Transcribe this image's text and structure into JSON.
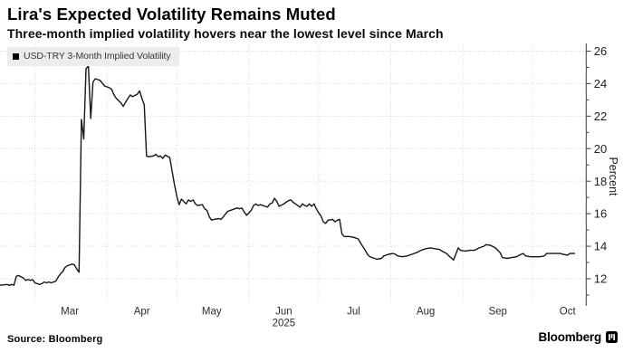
{
  "header": {
    "title": "Lira's Expected Volatility Remains Muted",
    "subtitle": "Three-month implied volatility hovers near the lowest level since March"
  },
  "legend": {
    "swatch_color": "#000000",
    "label": "USD-TRY 3-Month Implied Volatility"
  },
  "footer": {
    "source": "Source: Bloomberg",
    "brand": "Bloomberg"
  },
  "chart_data": {
    "type": "line",
    "title": "Lira's Expected Volatility Remains Muted",
    "subtitle": "Three-month implied volatility hovers near the lowest level since March",
    "ylabel": "Percent",
    "xlabel": "",
    "grid": "dotted",
    "legend_position": "top-left",
    "ylim": [
      10.33,
      26.47
    ],
    "y_ticks_major": [
      12,
      14,
      16,
      18,
      20,
      22,
      24,
      26
    ],
    "y_ticks_minor": [
      11,
      13,
      15,
      17,
      19,
      21,
      23,
      25
    ],
    "x_domain": [
      "2025-02-14",
      "2025-10-24"
    ],
    "x_gridline_dates": [
      "2025-03-01",
      "2025-04-01",
      "2025-05-01",
      "2025-06-01",
      "2025-07-01",
      "2025-08-01",
      "2025-09-01",
      "2025-10-01"
    ],
    "x_tick_labels": [
      {
        "label": "Mar",
        "date": "2025-03-16"
      },
      {
        "label": "Apr",
        "date": "2025-04-16"
      },
      {
        "label": "May",
        "date": "2025-05-16"
      },
      {
        "label": "Jun",
        "date": "2025-06-16"
      },
      {
        "label": "Jul",
        "date": "2025-07-16"
      },
      {
        "label": "Aug",
        "date": "2025-08-16"
      },
      {
        "label": "Sep",
        "date": "2025-09-16"
      },
      {
        "label": "Oct",
        "date": "2025-10-16"
      }
    ],
    "year_label": {
      "label": "2025",
      "date": "2025-06-16"
    },
    "style": {
      "line_color": "#161616",
      "grid_color": "#d4d4d4",
      "axis_color": "#3c3c3c",
      "tick_label_color": "#1d1d1d",
      "month_label_color": "#2e2e2e",
      "legend_bg": "#ececec"
    },
    "series": [
      {
        "name": "USD-TRY 3-Month Implied Volatility",
        "color": "#161616",
        "points": [
          [
            "2025-02-14",
            11.6
          ],
          [
            "2025-02-17",
            11.65
          ],
          [
            "2025-02-18",
            11.6
          ],
          [
            "2025-02-19",
            11.65
          ],
          [
            "2025-02-20",
            11.6
          ],
          [
            "2025-02-21",
            12.15
          ],
          [
            "2025-02-22",
            12.2
          ],
          [
            "2025-02-24",
            12.05
          ],
          [
            "2025-02-25",
            11.9
          ],
          [
            "2025-02-26",
            11.95
          ],
          [
            "2025-02-27",
            11.9
          ],
          [
            "2025-02-28",
            11.95
          ],
          [
            "2025-03-01",
            11.75
          ],
          [
            "2025-03-03",
            11.65
          ],
          [
            "2025-03-04",
            11.7
          ],
          [
            "2025-03-05",
            11.8
          ],
          [
            "2025-03-06",
            11.75
          ],
          [
            "2025-03-07",
            11.8
          ],
          [
            "2025-03-08",
            11.75
          ],
          [
            "2025-03-10",
            11.85
          ],
          [
            "2025-03-11",
            12.1
          ],
          [
            "2025-03-12",
            12.3
          ],
          [
            "2025-03-13",
            12.45
          ],
          [
            "2025-03-14",
            12.7
          ],
          [
            "2025-03-15",
            12.8
          ],
          [
            "2025-03-17",
            12.9
          ],
          [
            "2025-03-18",
            12.85
          ],
          [
            "2025-03-19",
            12.6
          ],
          [
            "2025-03-20",
            12.4
          ],
          [
            "2025-03-21",
            21.8
          ],
          [
            "2025-03-22",
            20.6
          ],
          [
            "2025-03-23",
            24.9
          ],
          [
            "2025-03-24",
            25.1
          ],
          [
            "2025-03-25",
            21.85
          ],
          [
            "2025-03-26",
            24.1
          ],
          [
            "2025-03-27",
            24.3
          ],
          [
            "2025-03-28",
            24.25
          ],
          [
            "2025-03-29",
            24.2
          ],
          [
            "2025-03-31",
            23.85
          ],
          [
            "2025-04-01",
            23.8
          ],
          [
            "2025-04-02",
            23.75
          ],
          [
            "2025-04-03",
            23.65
          ],
          [
            "2025-04-04",
            23.3
          ],
          [
            "2025-04-05",
            23.1
          ],
          [
            "2025-04-07",
            22.8
          ],
          [
            "2025-04-08",
            22.6
          ],
          [
            "2025-04-09",
            22.85
          ],
          [
            "2025-04-10",
            23.1
          ],
          [
            "2025-04-11",
            23.3
          ],
          [
            "2025-04-12",
            23.2
          ],
          [
            "2025-04-14",
            23.35
          ],
          [
            "2025-04-15",
            23.55
          ],
          [
            "2025-04-16",
            23.1
          ],
          [
            "2025-04-17",
            22.7
          ],
          [
            "2025-04-18",
            19.55
          ],
          [
            "2025-04-19",
            19.5
          ],
          [
            "2025-04-21",
            19.55
          ],
          [
            "2025-04-22",
            19.65
          ],
          [
            "2025-04-23",
            19.5
          ],
          [
            "2025-04-24",
            19.55
          ],
          [
            "2025-04-25",
            19.4
          ],
          [
            "2025-04-26",
            19.6
          ],
          [
            "2025-04-28",
            19.45
          ],
          [
            "2025-04-29",
            18.6
          ],
          [
            "2025-04-30",
            17.8
          ],
          [
            "2025-05-01",
            17.1
          ],
          [
            "2025-05-02",
            16.55
          ],
          [
            "2025-05-03",
            16.9
          ],
          [
            "2025-05-05",
            16.6
          ],
          [
            "2025-05-06",
            16.85
          ],
          [
            "2025-05-07",
            16.75
          ],
          [
            "2025-05-08",
            16.85
          ],
          [
            "2025-05-09",
            16.6
          ],
          [
            "2025-05-10",
            16.5
          ],
          [
            "2025-05-12",
            16.55
          ],
          [
            "2025-05-13",
            16.3
          ],
          [
            "2025-05-14",
            16.2
          ],
          [
            "2025-05-15",
            15.8
          ],
          [
            "2025-05-16",
            15.6
          ],
          [
            "2025-05-17",
            15.65
          ],
          [
            "2025-05-19",
            15.7
          ],
          [
            "2025-05-20",
            15.65
          ],
          [
            "2025-05-21",
            15.8
          ],
          [
            "2025-05-22",
            16.0
          ],
          [
            "2025-05-23",
            16.15
          ],
          [
            "2025-05-26",
            16.3
          ],
          [
            "2025-05-27",
            16.35
          ],
          [
            "2025-05-28",
            16.3
          ],
          [
            "2025-05-29",
            16.35
          ],
          [
            "2025-05-30",
            16.1
          ],
          [
            "2025-05-31",
            15.9
          ],
          [
            "2025-06-02",
            16.2
          ],
          [
            "2025-06-03",
            16.5
          ],
          [
            "2025-06-04",
            16.6
          ],
          [
            "2025-06-05",
            16.5
          ],
          [
            "2025-06-06",
            16.55
          ],
          [
            "2025-06-09",
            16.4
          ],
          [
            "2025-06-10",
            16.6
          ],
          [
            "2025-06-11",
            16.65
          ],
          [
            "2025-06-12",
            16.95
          ],
          [
            "2025-06-13",
            16.75
          ],
          [
            "2025-06-14",
            16.45
          ],
          [
            "2025-06-16",
            16.6
          ],
          [
            "2025-06-17",
            16.7
          ],
          [
            "2025-06-18",
            16.8
          ],
          [
            "2025-06-19",
            16.85
          ],
          [
            "2025-06-20",
            16.7
          ],
          [
            "2025-06-21",
            16.6
          ],
          [
            "2025-06-23",
            16.4
          ],
          [
            "2025-06-24",
            16.6
          ],
          [
            "2025-06-25",
            16.5
          ],
          [
            "2025-06-26",
            16.45
          ],
          [
            "2025-06-27",
            16.6
          ],
          [
            "2025-06-28",
            16.45
          ],
          [
            "2025-06-29",
            16.6
          ],
          [
            "2025-06-30",
            16.3
          ],
          [
            "2025-07-01",
            16.05
          ],
          [
            "2025-07-02",
            15.85
          ],
          [
            "2025-07-03",
            15.5
          ],
          [
            "2025-07-04",
            15.4
          ],
          [
            "2025-07-05",
            15.6
          ],
          [
            "2025-07-07",
            15.65
          ],
          [
            "2025-07-08",
            15.5
          ],
          [
            "2025-07-09",
            15.6
          ],
          [
            "2025-07-10",
            15.65
          ],
          [
            "2025-07-11",
            14.75
          ],
          [
            "2025-07-12",
            14.6
          ],
          [
            "2025-07-14",
            14.6
          ],
          [
            "2025-07-16",
            14.55
          ],
          [
            "2025-07-18",
            14.45
          ],
          [
            "2025-07-19",
            14.2
          ],
          [
            "2025-07-21",
            13.75
          ],
          [
            "2025-07-22",
            13.5
          ],
          [
            "2025-07-23",
            13.35
          ],
          [
            "2025-07-25",
            13.25
          ],
          [
            "2025-07-26",
            13.2
          ],
          [
            "2025-07-28",
            13.25
          ],
          [
            "2025-07-29",
            13.4
          ],
          [
            "2025-07-31",
            13.5
          ],
          [
            "2025-08-02",
            13.55
          ],
          [
            "2025-08-03",
            13.5
          ],
          [
            "2025-08-04",
            13.4
          ],
          [
            "2025-08-06",
            13.35
          ],
          [
            "2025-08-08",
            13.4
          ],
          [
            "2025-08-10",
            13.5
          ],
          [
            "2025-08-12",
            13.6
          ],
          [
            "2025-08-14",
            13.75
          ],
          [
            "2025-08-16",
            13.85
          ],
          [
            "2025-08-18",
            13.9
          ],
          [
            "2025-08-20",
            13.85
          ],
          [
            "2025-08-22",
            13.8
          ],
          [
            "2025-08-23",
            13.7
          ],
          [
            "2025-08-25",
            13.55
          ],
          [
            "2025-08-26",
            13.4
          ],
          [
            "2025-08-28",
            13.15
          ],
          [
            "2025-08-30",
            13.9
          ],
          [
            "2025-08-31",
            13.75
          ],
          [
            "2025-09-02",
            13.7
          ],
          [
            "2025-09-04",
            13.75
          ],
          [
            "2025-09-06",
            13.75
          ],
          [
            "2025-09-08",
            13.9
          ],
          [
            "2025-09-10",
            14.0
          ],
          [
            "2025-09-11",
            14.1
          ],
          [
            "2025-09-13",
            14.05
          ],
          [
            "2025-09-15",
            13.9
          ],
          [
            "2025-09-17",
            13.6
          ],
          [
            "2025-09-18",
            13.3
          ],
          [
            "2025-09-20",
            13.25
          ],
          [
            "2025-09-22",
            13.3
          ],
          [
            "2025-09-24",
            13.35
          ],
          [
            "2025-09-26",
            13.5
          ],
          [
            "2025-09-27",
            13.55
          ],
          [
            "2025-09-28",
            13.4
          ],
          [
            "2025-09-30",
            13.35
          ],
          [
            "2025-10-02",
            13.35
          ],
          [
            "2025-10-04",
            13.35
          ],
          [
            "2025-10-06",
            13.4
          ],
          [
            "2025-10-07",
            13.55
          ],
          [
            "2025-10-09",
            13.55
          ],
          [
            "2025-10-11",
            13.55
          ],
          [
            "2025-10-13",
            13.55
          ],
          [
            "2025-10-14",
            13.5
          ],
          [
            "2025-10-16",
            13.45
          ],
          [
            "2025-10-17",
            13.55
          ],
          [
            "2025-10-19",
            13.55
          ]
        ]
      }
    ]
  }
}
